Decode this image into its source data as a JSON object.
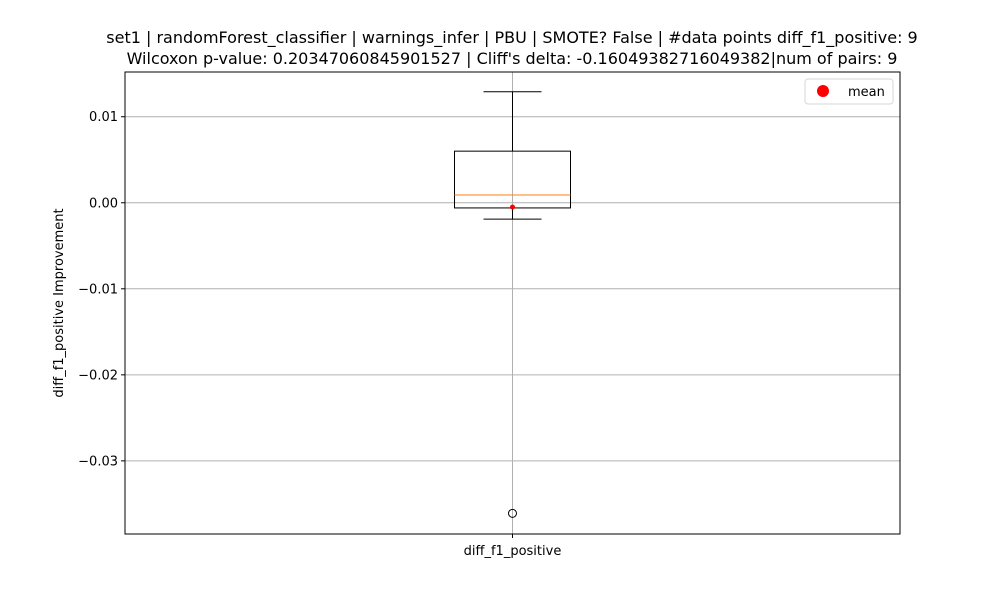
{
  "chart_data": {
    "type": "box",
    "title_lines": [
      "set1 | randomForest_classifier | warnings_infer | PBU | SMOTE? False | #data points diff_f1_positive: 9",
      "Wilcoxon p-value: 0.20347060845901527 | Cliff's delta: -0.16049382716049382|num of pairs: 9"
    ],
    "xlabel": "",
    "ylabel": "diff_f1_positive Improvement",
    "categories": [
      "diff_f1_positive"
    ],
    "ylim": [
      -0.0385,
      0.0152
    ],
    "yticks": [
      0.01,
      0.0,
      -0.01,
      -0.02,
      -0.03
    ],
    "ytick_labels": [
      "0.01",
      "0.00",
      "−0.01",
      "−0.02",
      "−0.03"
    ],
    "grid": true,
    "legend": {
      "placement": "top-right",
      "entries": [
        {
          "label": "mean",
          "marker": "circle",
          "color": "#ff0000"
        }
      ]
    },
    "boxes": [
      {
        "name": "diff_f1_positive",
        "whisker_low": -0.0019,
        "q1": -0.0006,
        "median": 0.0009,
        "q3": 0.006,
        "whisker_high": 0.0129,
        "mean": -0.0005,
        "outliers": [
          -0.0361
        ]
      }
    ],
    "colors": {
      "box": "#000000",
      "median": "#ff7f0e",
      "mean": "#ff0000",
      "grid": "#b0b0b0"
    }
  }
}
